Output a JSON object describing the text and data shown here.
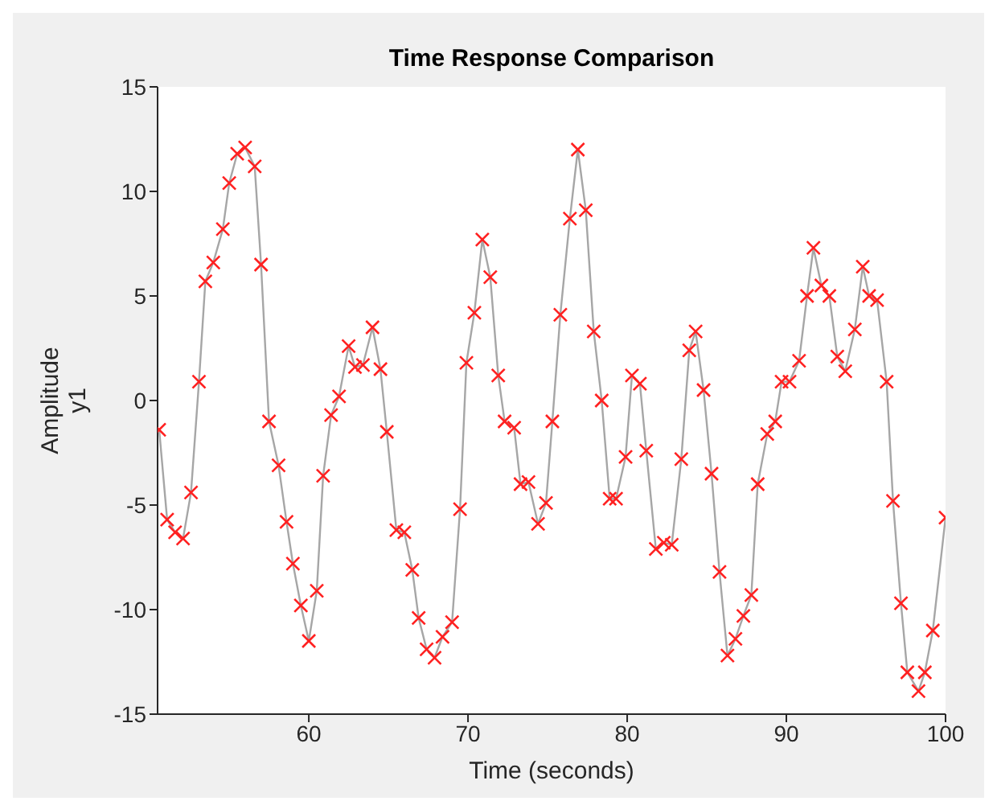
{
  "chart_data": {
    "type": "line",
    "title": "Time Response Comparison",
    "xlabel": "Time (seconds)",
    "ylabel": "Amplitude\ny1",
    "xlim": [
      50.5,
      100
    ],
    "xticks": [
      60,
      70,
      80,
      90,
      100
    ],
    "ylim": [
      -15,
      15
    ],
    "yticks": [
      -15,
      -10,
      -5,
      0,
      5,
      10,
      15
    ],
    "grid": false,
    "legend": false,
    "marker": "cross",
    "line_style": "solid",
    "series": [
      {
        "color": "#a6a6a6",
        "x": [
          50.6,
          51.1,
          51.6,
          52.1,
          52.6,
          53.1,
          53.5,
          54.0,
          54.6,
          55.0,
          55.5,
          56.0,
          56.6,
          57.0,
          57.5,
          58.1,
          58.6,
          59.0,
          59.5,
          60.0,
          60.5,
          60.9,
          61.4,
          61.9,
          62.5,
          62.9,
          63.4,
          64.0,
          64.5,
          64.9,
          65.5,
          66.0,
          66.5,
          66.9,
          67.4,
          67.9,
          68.4,
          69.0,
          69.5,
          69.9,
          70.4,
          70.9,
          71.4,
          71.9,
          72.3,
          72.9,
          73.3,
          73.8,
          74.4,
          74.9,
          75.3,
          75.8,
          76.4,
          76.9,
          77.4,
          77.9,
          78.4,
          78.9,
          79.3,
          79.9,
          80.3,
          80.8,
          81.2,
          81.8,
          82.3,
          82.8,
          83.4,
          83.9,
          84.3,
          84.8,
          85.3,
          85.8,
          86.3,
          86.8,
          87.3,
          87.8,
          88.2,
          88.8,
          89.3,
          89.7,
          90.2,
          90.8,
          91.3,
          91.7,
          92.2,
          92.7,
          93.2,
          93.7,
          94.3,
          94.8,
          95.2,
          95.7,
          96.3,
          96.7,
          97.2,
          97.6,
          98.3,
          98.7,
          99.2,
          100
        ],
        "values": [
          -1.4,
          -5.7,
          -6.3,
          -6.6,
          -4.4,
          0.9,
          5.7,
          6.6,
          8.2,
          10.4,
          11.8,
          12.1,
          11.2,
          6.5,
          -1.0,
          -3.1,
          -5.8,
          -7.8,
          -9.8,
          -11.5,
          -9.1,
          -3.6,
          -0.7,
          0.2,
          2.6,
          1.6,
          1.7,
          3.5,
          1.5,
          -1.5,
          -6.2,
          -6.3,
          -8.1,
          -10.4,
          -11.9,
          -12.3,
          -11.3,
          -10.6,
          -5.2,
          1.8,
          4.2,
          7.7,
          5.9,
          1.2,
          -1.0,
          -1.3,
          -4.0,
          -3.9,
          -5.9,
          -4.9,
          -1.0,
          4.1,
          8.7,
          12.0,
          9.1,
          3.3,
          0.0,
          -4.7,
          -4.7,
          -2.7,
          1.2,
          0.8,
          -2.4,
          -7.1,
          -6.8,
          -6.9,
          -2.8,
          2.4,
          3.3,
          0.5,
          -3.5,
          -8.2,
          -12.2,
          -11.4,
          -10.3,
          -9.3,
          -4.0,
          -1.6,
          -1.0,
          0.9,
          0.9,
          1.9,
          5.0,
          7.3,
          5.5,
          5.0,
          2.1,
          1.4,
          3.4,
          6.4,
          5.0,
          4.8,
          0.9,
          -4.8,
          -9.7,
          -13.0,
          -13.9,
          -13.0,
          -11.0,
          -5.6
        ]
      }
    ]
  }
}
